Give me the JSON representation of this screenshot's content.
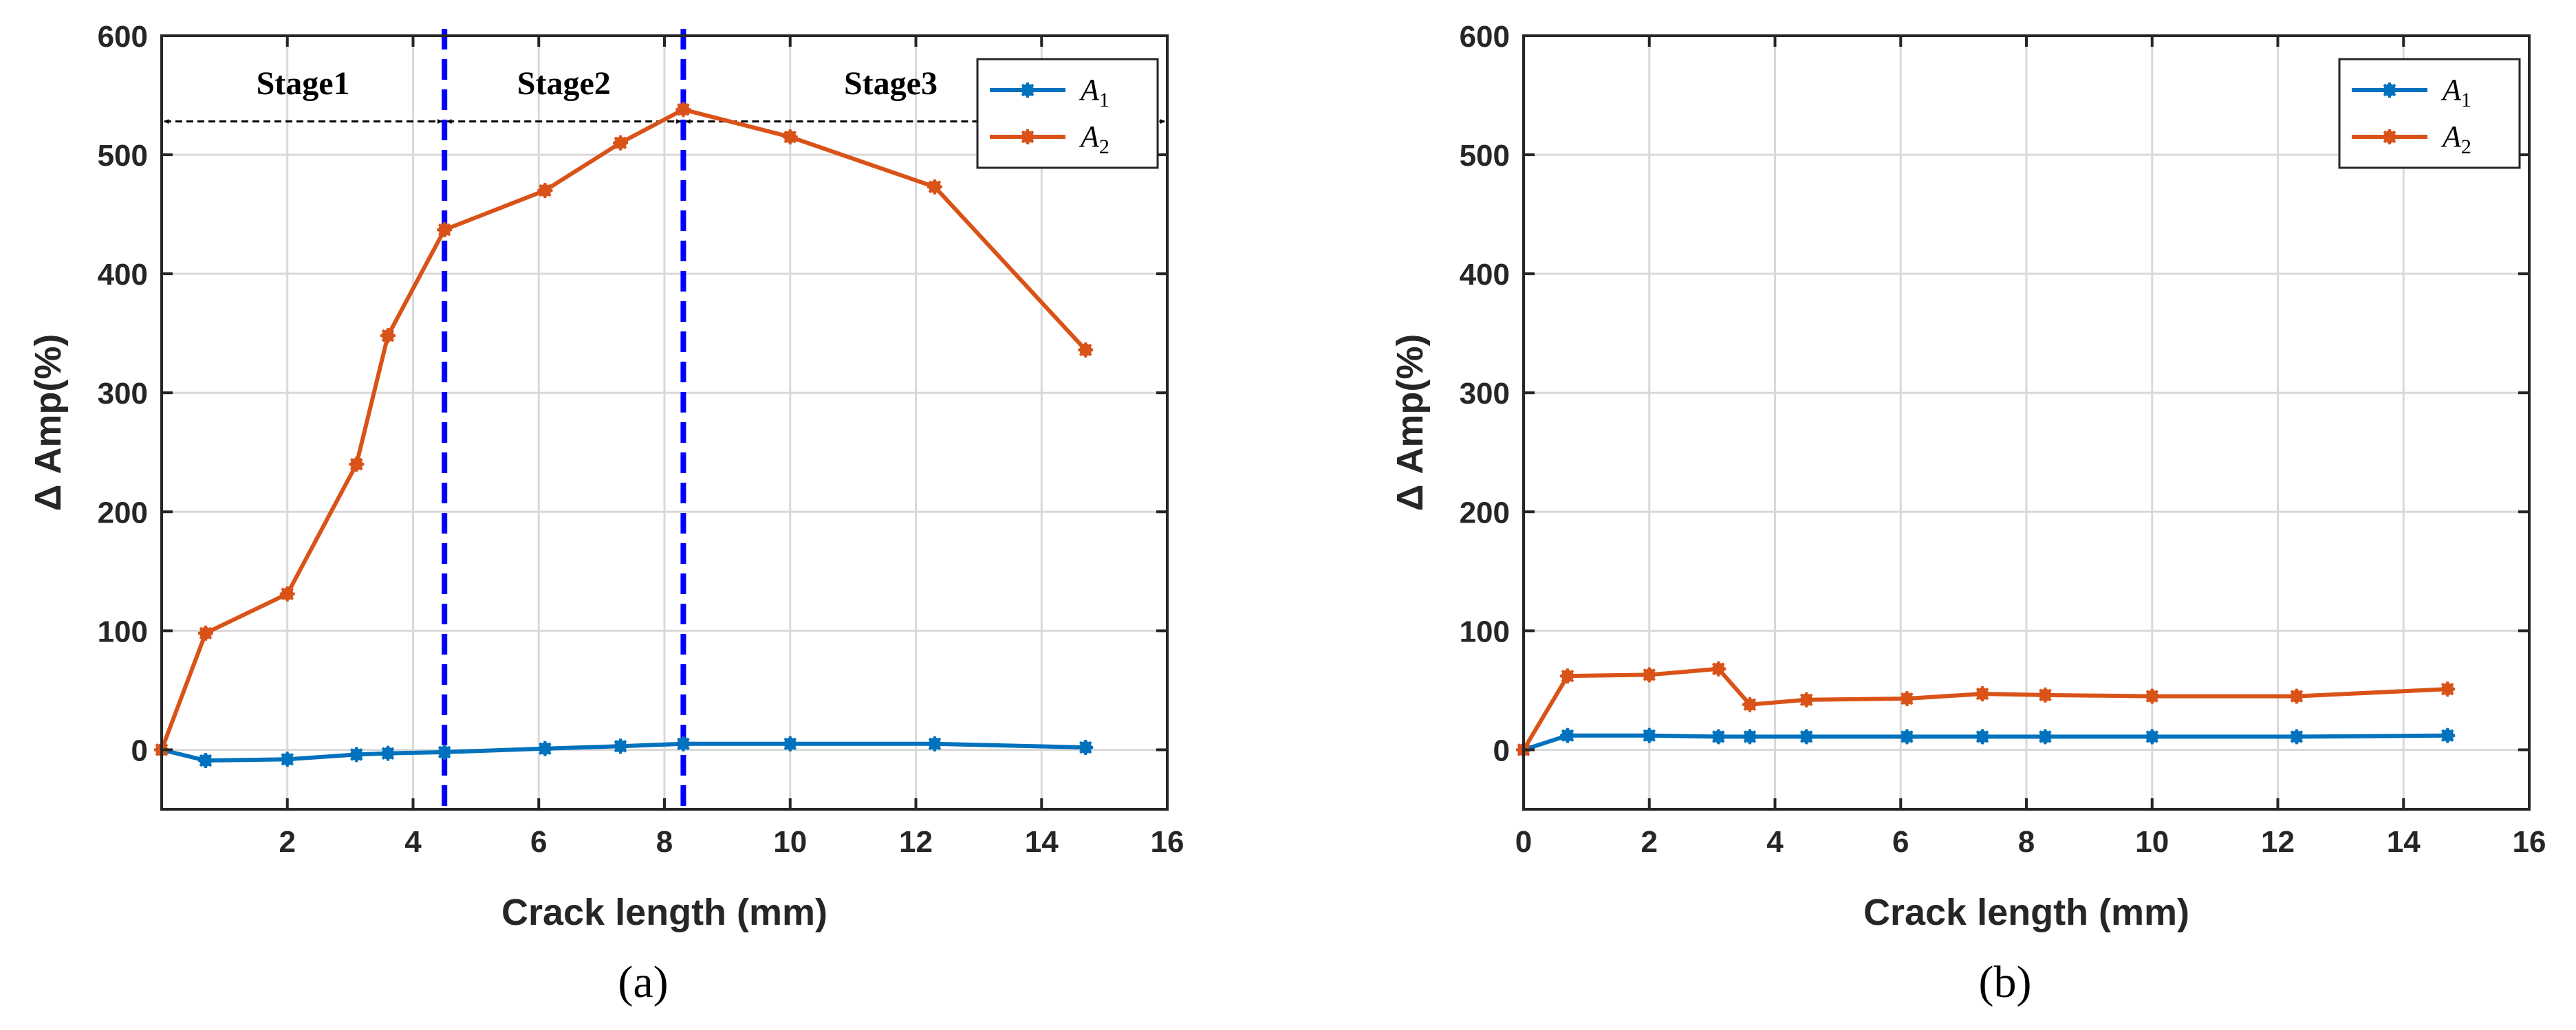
{
  "colors": {
    "A1": "#0072BD",
    "A2": "#D95319",
    "stage_divider": "#0000FF",
    "grid": "#D9D9D9",
    "axis": "#262626"
  },
  "chart_data": [
    {
      "type": "line",
      "panel_label": "(a)",
      "xlabel": "Crack length (mm)",
      "ylabel": "Δ Amp(%)",
      "xlim": [
        0,
        16
      ],
      "ylim": [
        -50,
        600
      ],
      "xticks": [
        2,
        4,
        6,
        8,
        10,
        12,
        14,
        16
      ],
      "yticks": [
        0,
        100,
        200,
        300,
        400,
        500,
        600
      ],
      "grid": true,
      "legend_position": "top-right",
      "series": [
        {
          "name": "A",
          "subscript": "1",
          "color_key": "A1",
          "x": [
            0,
            0.7,
            2,
            3.1,
            3.6,
            4.5,
            6.1,
            7.3,
            8.3,
            10,
            12.3,
            14.7
          ],
          "y": [
            0,
            -9,
            -8,
            -4,
            -3,
            -2,
            1,
            3,
            5,
            5,
            5,
            2
          ]
        },
        {
          "name": "A",
          "subscript": "2",
          "color_key": "A2",
          "x": [
            0,
            0.7,
            2,
            3.1,
            3.6,
            4.5,
            6.1,
            7.3,
            8.3,
            10,
            12.3,
            14.7
          ],
          "y": [
            0,
            98,
            131,
            240,
            348,
            437,
            470,
            510,
            538,
            515,
            473,
            336
          ]
        }
      ],
      "stage_dividers_x": [
        4.5,
        8.3
      ],
      "stages": [
        {
          "label": "Stage1",
          "from": 0,
          "to": 4.5,
          "arrow_y": 528
        },
        {
          "label": "Stage2",
          "from": 4.5,
          "to": 8.3,
          "arrow_y": 528
        },
        {
          "label": "Stage3",
          "from": 8.3,
          "to": 16,
          "arrow_y": 528
        }
      ]
    },
    {
      "type": "line",
      "panel_label": "(b)",
      "xlabel": "Crack length (mm)",
      "ylabel": "Δ Amp(%)",
      "xlim": [
        0,
        16
      ],
      "ylim": [
        -50,
        600
      ],
      "xticks": [
        0,
        2,
        4,
        6,
        8,
        10,
        12,
        14,
        16
      ],
      "yticks": [
        0,
        100,
        200,
        300,
        400,
        500,
        600
      ],
      "grid": true,
      "legend_position": "top-right",
      "series": [
        {
          "name": "A",
          "subscript": "1",
          "color_key": "A1",
          "x": [
            0,
            0.7,
            2,
            3.1,
            3.6,
            4.5,
            6.1,
            7.3,
            8.3,
            10,
            12.3,
            14.7
          ],
          "y": [
            0,
            12,
            12,
            11,
            11,
            11,
            11,
            11,
            11,
            11,
            11,
            12
          ]
        },
        {
          "name": "A",
          "subscript": "2",
          "color_key": "A2",
          "x": [
            0,
            0.7,
            2,
            3.1,
            3.6,
            4.5,
            6.1,
            7.3,
            8.3,
            10,
            12.3,
            14.7
          ],
          "y": [
            0,
            62,
            63,
            68,
            38,
            42,
            43,
            47,
            46,
            45,
            45,
            51
          ]
        }
      ],
      "stage_dividers_x": [],
      "stages": []
    }
  ]
}
